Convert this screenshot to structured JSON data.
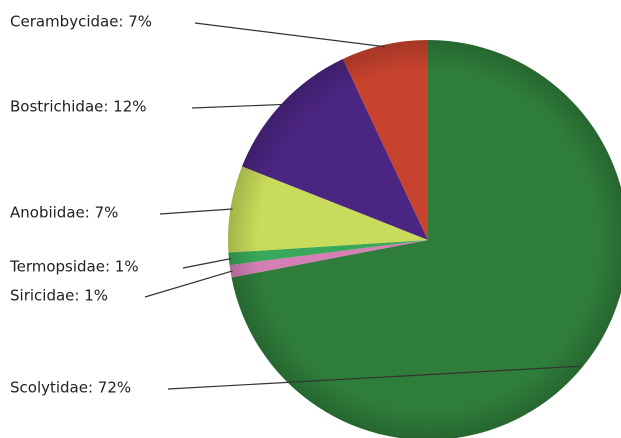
{
  "chart_data": {
    "type": "pie",
    "values": [
      72,
      1,
      1,
      7,
      12,
      7
    ],
    "value_labels": [
      "Scolytidae: 72%",
      "Siricidae: 1%",
      "Termopsidae: 1%",
      "Anobiidae: 7%",
      "Bostrichidae: 12%",
      "Cerambycidae: 7%"
    ],
    "colors": [
      "#2f7d3a",
      "#d67fb6",
      "#3aa85a",
      "#c8db5a",
      "#4b2582",
      "#c8432e"
    ],
    "direction": "clockwise"
  }
}
